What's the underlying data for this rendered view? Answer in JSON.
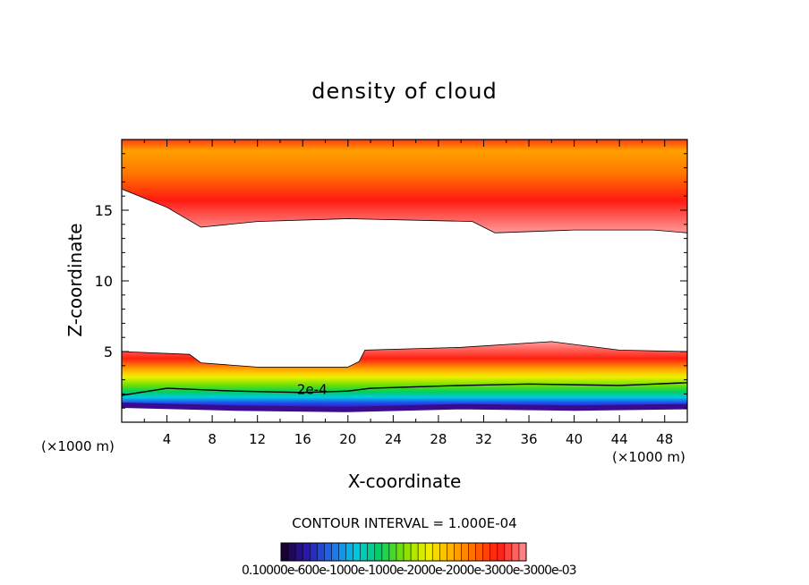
{
  "chart_data": {
    "type": "heatmap",
    "title": "density of cloud",
    "xlabel": "X-coordinate",
    "ylabel": "Z-coordinate",
    "x_unit_label": "(×1000 m)",
    "x_ticks": [
      4,
      8,
      12,
      16,
      20,
      24,
      28,
      32,
      36,
      40,
      44,
      48
    ],
    "y_ticks": [
      5,
      10,
      15
    ],
    "xlim": [
      0,
      50
    ],
    "ylim": [
      0,
      20
    ],
    "contour_interval_text": "CONTOUR INTERVAL = 1.000E-04",
    "contour_label": "2e-4",
    "colorbar_labels_text": "0.10000e-600e-1000e-1000e-2000e-2000e-3000e-3000e-03",
    "upper_layer": {
      "base_z": [
        [
          0,
          16.5
        ],
        [
          4,
          15.2
        ],
        [
          7,
          13.8
        ],
        [
          12,
          14.2
        ],
        [
          20,
          14.4
        ],
        [
          31,
          14.2
        ],
        [
          33,
          13.4
        ],
        [
          40,
          13.6
        ],
        [
          47,
          13.6
        ],
        [
          50,
          13.4
        ]
      ],
      "top_z": 20
    },
    "lower_layer": {
      "top_z": [
        [
          0,
          5.0
        ],
        [
          6,
          4.8
        ],
        [
          7,
          4.2
        ],
        [
          12,
          3.9
        ],
        [
          20,
          3.9
        ],
        [
          21,
          4.3
        ],
        [
          21.5,
          5.1
        ],
        [
          30,
          5.3
        ],
        [
          38,
          5.7
        ],
        [
          44,
          5.1
        ],
        [
          50,
          5.0
        ]
      ],
      "contour_2e4_z": [
        [
          0,
          1.9
        ],
        [
          4,
          2.4
        ],
        [
          10,
          2.2
        ],
        [
          16,
          2.1
        ],
        [
          20,
          2.2
        ],
        [
          22,
          2.4
        ],
        [
          30,
          2.6
        ],
        [
          36,
          2.7
        ],
        [
          44,
          2.6
        ],
        [
          50,
          2.8
        ]
      ],
      "bottom_z": [
        [
          0,
          1.2
        ],
        [
          10,
          1.0
        ],
        [
          20,
          0.9
        ],
        [
          30,
          1.1
        ],
        [
          40,
          1.0
        ],
        [
          50,
          1.1
        ]
      ]
    },
    "palette": [
      "#1a0033",
      "#2a1ab8",
      "#1e6ff0",
      "#00c8e0",
      "#00d060",
      "#7fe000",
      "#f0f000",
      "#ffb000",
      "#ff6a00",
      "#ff1a10",
      "#ff8080"
    ]
  }
}
